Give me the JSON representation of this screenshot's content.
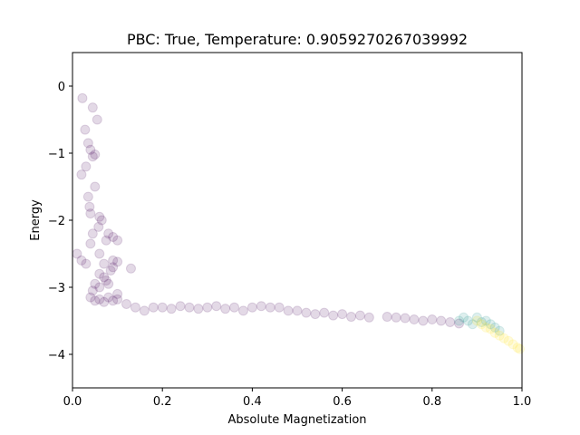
{
  "chart_data": {
    "type": "scatter",
    "title": "PBC: True, Temperature: 0.9059270267039992",
    "xlabel": "Absolute Magnetization",
    "ylabel": "Energy",
    "xlim": [
      0.0,
      1.0
    ],
    "ylim": [
      -4.5,
      0.5
    ],
    "xticks": [
      "0.0",
      "0.2",
      "0.4",
      "0.6",
      "0.8",
      "1.0"
    ],
    "yticks": [
      "0",
      "−1",
      "−2",
      "−3",
      "−4"
    ],
    "xtick_values": [
      0.0,
      0.2,
      0.4,
      0.6,
      0.8,
      1.0
    ],
    "ytick_values": [
      0,
      -1,
      -2,
      -3,
      -4
    ],
    "grid": false,
    "colormap": "viridis (early steps dark purple, late steps yellow)",
    "marker_alpha": 0.15,
    "series": [
      {
        "color": "#440154",
        "x": [
          0.022,
          0.045,
          0.055,
          0.028,
          0.035,
          0.04,
          0.045,
          0.05,
          0.03,
          0.02,
          0.05,
          0.035,
          0.038,
          0.04,
          0.06,
          0.065,
          0.058,
          0.045,
          0.04,
          0.075,
          0.08,
          0.09,
          0.1,
          0.09,
          0.07,
          0.06,
          0.075,
          0.085,
          0.1,
          0.13,
          0.05,
          0.06,
          0.07,
          0.08,
          0.09,
          0.045,
          0.1,
          0.06,
          0.03,
          0.01,
          0.02
        ],
        "y": [
          -0.18,
          -0.32,
          -0.5,
          -0.65,
          -0.85,
          -0.95,
          -1.05,
          -1.02,
          -1.2,
          -1.32,
          -1.5,
          -1.65,
          -1.8,
          -1.9,
          -1.95,
          -2.0,
          -2.1,
          -2.2,
          -2.35,
          -2.3,
          -2.2,
          -2.25,
          -2.3,
          -2.6,
          -2.65,
          -2.8,
          -2.9,
          -2.75,
          -2.62,
          -2.72,
          -2.95,
          -3.0,
          -2.85,
          -2.95,
          -2.7,
          -3.05,
          -3.1,
          -2.5,
          -2.65,
          -2.5,
          -2.6
        ]
      },
      {
        "color": "#440154",
        "x": [
          0.04,
          0.05,
          0.06,
          0.07,
          0.08,
          0.09,
          0.1,
          0.12,
          0.14,
          0.16,
          0.18,
          0.2,
          0.22,
          0.24,
          0.26,
          0.28,
          0.3,
          0.32,
          0.34,
          0.36,
          0.38,
          0.4,
          0.42,
          0.44,
          0.46,
          0.48,
          0.5,
          0.52,
          0.54,
          0.56,
          0.58,
          0.6,
          0.62,
          0.64,
          0.66,
          0.7,
          0.72,
          0.74,
          0.76,
          0.78,
          0.8,
          0.82,
          0.84,
          0.86
        ],
        "y": [
          -3.15,
          -3.2,
          -3.18,
          -3.22,
          -3.15,
          -3.2,
          -3.18,
          -3.25,
          -3.3,
          -3.35,
          -3.3,
          -3.3,
          -3.32,
          -3.28,
          -3.3,
          -3.32,
          -3.3,
          -3.28,
          -3.32,
          -3.3,
          -3.35,
          -3.3,
          -3.28,
          -3.3,
          -3.3,
          -3.35,
          -3.35,
          -3.38,
          -3.4,
          -3.38,
          -3.42,
          -3.4,
          -3.44,
          -3.42,
          -3.45,
          -3.44,
          -3.45,
          -3.46,
          -3.48,
          -3.5,
          -3.48,
          -3.5,
          -3.52,
          -3.54
        ]
      },
      {
        "color": "#21918c",
        "x": [
          0.86,
          0.87,
          0.88,
          0.89,
          0.9,
          0.91,
          0.92,
          0.93,
          0.94,
          0.95
        ],
        "y": [
          -3.5,
          -3.45,
          -3.5,
          -3.55,
          -3.45,
          -3.52,
          -3.5,
          -3.55,
          -3.6,
          -3.65
        ]
      },
      {
        "color": "#fde725",
        "x": [
          0.9,
          0.91,
          0.92,
          0.93,
          0.94,
          0.95,
          0.96,
          0.97,
          0.98,
          0.99,
          0.995
        ],
        "y": [
          -3.5,
          -3.55,
          -3.6,
          -3.62,
          -3.68,
          -3.72,
          -3.76,
          -3.8,
          -3.85,
          -3.9,
          -3.92
        ]
      }
    ]
  }
}
